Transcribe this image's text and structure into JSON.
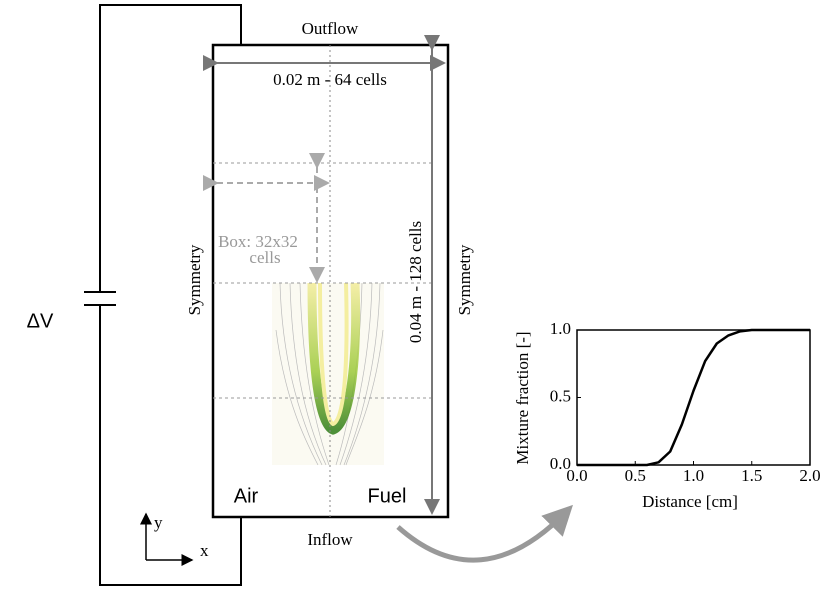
{
  "labels": {
    "outflow": "Outflow",
    "inflow": "Inflow",
    "width": "0.02 m - 64 cells",
    "height": "0.04 m - 128 cells",
    "symmetry_left": "Symmetry",
    "symmetry_right": "Symmetry",
    "box_line1": "Box: 32x32",
    "box_line2": "cells",
    "air": "Air",
    "fuel": "Fuel",
    "voltage": "ΔV",
    "axis_y": "y",
    "axis_x": "x"
  },
  "chart_data": {
    "type": "line",
    "xlabel": "Distance [cm]",
    "ylabel": "Mixture fraction [-]",
    "color": "#000000",
    "x": [
      0,
      0.1,
      0.2,
      0.3,
      0.4,
      0.5,
      0.6,
      0.7,
      0.8,
      0.9,
      1.0,
      1.1,
      1.2,
      1.3,
      1.4,
      1.5,
      1.6,
      1.7,
      1.8,
      1.9,
      2.0
    ],
    "values": [
      0,
      0,
      0,
      0,
      0,
      0,
      0,
      0.02,
      0.1,
      0.3,
      0.55,
      0.77,
      0.9,
      0.96,
      0.99,
      1,
      1,
      1,
      1,
      1,
      1
    ],
    "xlim": [
      0,
      2
    ],
    "ylim": [
      0,
      1
    ],
    "xticks": [
      {
        "value": 0,
        "label": "0.0"
      },
      0.5,
      {
        "value": 1,
        "label": "1.0"
      },
      1.5,
      {
        "value": 2,
        "label": "2.0"
      }
    ],
    "yticks": [
      {
        "value": 0,
        "label": "0.0"
      },
      0.5,
      {
        "value": 1,
        "label": "1.0"
      }
    ]
  }
}
